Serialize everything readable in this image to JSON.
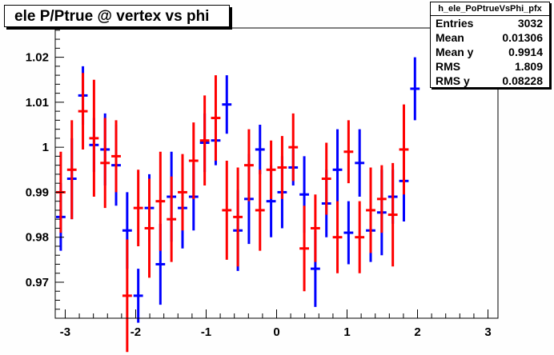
{
  "title": "ele P/Ptrue @ vertex vs phi",
  "stats": {
    "name": "h_ele_PoPtrueVsPhi_pfx",
    "rows": [
      {
        "label": "Entries",
        "value": "3032"
      },
      {
        "label": "Mean",
        "value": "0.01306"
      },
      {
        "label": "Mean y",
        "value": "0.9914"
      },
      {
        "label": "RMS",
        "value": "1.809"
      },
      {
        "label": "RMS y",
        "value": "0.08228"
      }
    ]
  },
  "chart_data": {
    "type": "scatter",
    "title": "ele P/Ptrue @ vertex vs phi",
    "xlabel": "",
    "ylabel": "",
    "xlim": [
      -3.1416,
      3.1416
    ],
    "ylim": [
      0.962,
      1.0265
    ],
    "x_ticks": [
      "-3",
      "-2",
      "-1",
      "0",
      "1",
      "2",
      "3"
    ],
    "y_ticks": [
      "0.97",
      "0.98",
      "0.99",
      "1",
      "1.01",
      "1.02"
    ],
    "bin_half_width": 0.0785,
    "series": [
      {
        "color": "#0000ff",
        "points": [
          {
            "x": -3.0631,
            "y": 0.9845,
            "err": 0.0075
          },
          {
            "x": -2.906,
            "y": 0.993,
            "err": 0.009
          },
          {
            "x": -2.7489,
            "y": 1.0115,
            "err": 0.0065
          },
          {
            "x": -2.5918,
            "y": 1.0005,
            "err": 0.006
          },
          {
            "x": -2.4347,
            "y": 0.9995,
            "err": 0.008
          },
          {
            "x": -2.2777,
            "y": 0.996,
            "err": 0.009
          },
          {
            "x": -2.1206,
            "y": 0.9815,
            "err": 0.0085
          },
          {
            "x": -1.9635,
            "y": 0.967,
            "err": 0.006
          },
          {
            "x": -1.8064,
            "y": 0.9865,
            "err": 0.0075
          },
          {
            "x": -1.6493,
            "y": 0.974,
            "err": 0.009
          },
          {
            "x": -1.4923,
            "y": 0.989,
            "err": 0.01
          },
          {
            "x": -1.3352,
            "y": 0.9865,
            "err": 0.009
          },
          {
            "x": -1.1781,
            "y": 0.989,
            "err": 0.0075
          },
          {
            "x": -1.021,
            "y": 1.001,
            "err": 0.0065
          },
          {
            "x": -0.8639,
            "y": 1.0015,
            "err": 0.0055
          },
          {
            "x": -0.7069,
            "y": 1.0095,
            "err": 0.0065
          },
          {
            "x": -0.5498,
            "y": 0.9815,
            "err": 0.009
          },
          {
            "x": -0.3927,
            "y": 0.9885,
            "err": 0.01
          },
          {
            "x": -0.2356,
            "y": 0.9995,
            "err": 0.0055
          },
          {
            "x": -0.0785,
            "y": 0.988,
            "err": 0.008
          },
          {
            "x": 0.0785,
            "y": 0.99,
            "err": 0.008
          },
          {
            "x": 0.2356,
            "y": 0.9955,
            "err": 0.004
          },
          {
            "x": 0.3927,
            "y": 0.9895,
            "err": 0.0085
          },
          {
            "x": 0.5498,
            "y": 0.973,
            "err": 0.0085
          },
          {
            "x": 0.7069,
            "y": 0.9875,
            "err": 0.0075
          },
          {
            "x": 0.8639,
            "y": 0.995,
            "err": 0.009
          },
          {
            "x": 1.021,
            "y": 0.981,
            "err": 0.007
          },
          {
            "x": 1.1781,
            "y": 0.9965,
            "err": 0.0075
          },
          {
            "x": 1.3352,
            "y": 0.9815,
            "err": 0.007
          },
          {
            "x": 1.4923,
            "y": 0.9855,
            "err": 0.0095
          },
          {
            "x": 1.6493,
            "y": 0.989,
            "err": 0.006
          },
          {
            "x": 1.8064,
            "y": 0.9925,
            "err": 0.009
          },
          {
            "x": 1.9635,
            "y": 1.013,
            "err": 0.007
          }
        ]
      },
      {
        "color": "#ff0000",
        "points": [
          {
            "x": -3.0631,
            "y": 0.99,
            "err": 0.009
          },
          {
            "x": -2.906,
            "y": 0.995,
            "err": 0.011
          },
          {
            "x": -2.7489,
            "y": 1.008,
            "err": 0.0085
          },
          {
            "x": -2.5918,
            "y": 1.002,
            "err": 0.013
          },
          {
            "x": -2.4347,
            "y": 0.9965,
            "err": 0.01
          },
          {
            "x": -2.2777,
            "y": 0.998,
            "err": 0.008
          },
          {
            "x": -2.1206,
            "y": 0.967,
            "err": 0.0125
          },
          {
            "x": -1.9635,
            "y": 0.9865,
            "err": 0.0085
          },
          {
            "x": -1.8064,
            "y": 0.982,
            "err": 0.011
          },
          {
            "x": -1.6493,
            "y": 0.988,
            "err": 0.011
          },
          {
            "x": -1.4923,
            "y": 0.984,
            "err": 0.0095
          },
          {
            "x": -1.3352,
            "y": 0.99,
            "err": 0.0085
          },
          {
            "x": -1.1781,
            "y": 0.997,
            "err": 0.0085
          },
          {
            "x": -1.021,
            "y": 1.0015,
            "err": 0.01
          },
          {
            "x": -0.8639,
            "y": 1.0065,
            "err": 0.0095
          },
          {
            "x": -0.7069,
            "y": 0.986,
            "err": 0.011
          },
          {
            "x": -0.5498,
            "y": 0.9845,
            "err": 0.011
          },
          {
            "x": -0.3927,
            "y": 0.996,
            "err": 0.008
          },
          {
            "x": -0.2356,
            "y": 0.986,
            "err": 0.009
          },
          {
            "x": -0.0785,
            "y": 0.995,
            "err": 0.0065
          },
          {
            "x": 0.0785,
            "y": 0.9955,
            "err": 0.007
          },
          {
            "x": 0.2356,
            "y": 1.0,
            "err": 0.0075
          },
          {
            "x": 0.3927,
            "y": 0.9775,
            "err": 0.0095
          },
          {
            "x": 0.5498,
            "y": 0.982,
            "err": 0.0075
          },
          {
            "x": 0.7069,
            "y": 0.993,
            "err": 0.008
          },
          {
            "x": 0.8639,
            "y": 0.98,
            "err": 0.008
          },
          {
            "x": 1.021,
            "y": 0.999,
            "err": 0.007
          },
          {
            "x": 1.1781,
            "y": 0.98,
            "err": 0.008
          },
          {
            "x": 1.3352,
            "y": 0.986,
            "err": 0.0095
          },
          {
            "x": 1.4923,
            "y": 0.9885,
            "err": 0.0075
          },
          {
            "x": 1.6493,
            "y": 0.985,
            "err": 0.0115
          },
          {
            "x": 1.8064,
            "y": 0.9995,
            "err": 0.01
          }
        ]
      }
    ]
  }
}
